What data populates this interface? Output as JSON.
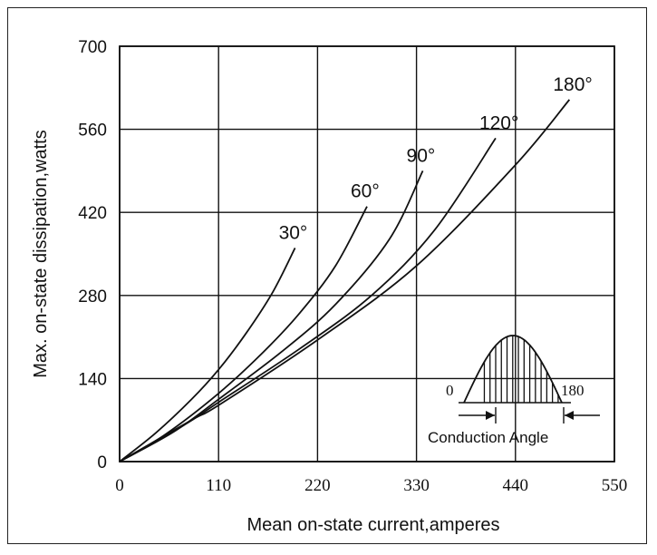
{
  "chart_data": {
    "type": "line",
    "xlabel": "Mean on-state current,amperes",
    "ylabel": "Max. on-state dissipation,watts",
    "xlim": [
      0,
      550
    ],
    "ylim": [
      0,
      700
    ],
    "xticks": [
      "0",
      "110",
      "220",
      "330",
      "440",
      "550"
    ],
    "yticks": [
      "0",
      "140",
      "280",
      "420",
      "560",
      "700"
    ],
    "grid": true,
    "series": [
      {
        "name": "30°",
        "x": [
          0,
          40,
          80,
          110,
          140,
          170,
          195
        ],
        "y": [
          0,
          48,
          105,
          155,
          215,
          285,
          360
        ]
      },
      {
        "name": "60°",
        "x": [
          0,
          50,
          110,
          160,
          200,
          240,
          275
        ],
        "y": [
          0,
          45,
          115,
          185,
          250,
          330,
          430
        ]
      },
      {
        "name": "90°",
        "x": [
          0,
          60,
          110,
          180,
          240,
          300,
          337
        ],
        "y": [
          0,
          50,
          105,
          185,
          265,
          375,
          490
        ]
      },
      {
        "name": "120°",
        "x": [
          0,
          70,
          110,
          200,
          280,
          350,
          418
        ],
        "y": [
          0,
          60,
          100,
          190,
          280,
          390,
          545
        ]
      },
      {
        "name": "180°",
        "x": [
          0,
          80,
          110,
          220,
          330,
          440,
          500
        ],
        "y": [
          0,
          70,
          95,
          205,
          330,
          500,
          610
        ]
      }
    ],
    "inset": {
      "label_left": "0",
      "label_right": "180",
      "caption": "Conduction Angle"
    }
  }
}
